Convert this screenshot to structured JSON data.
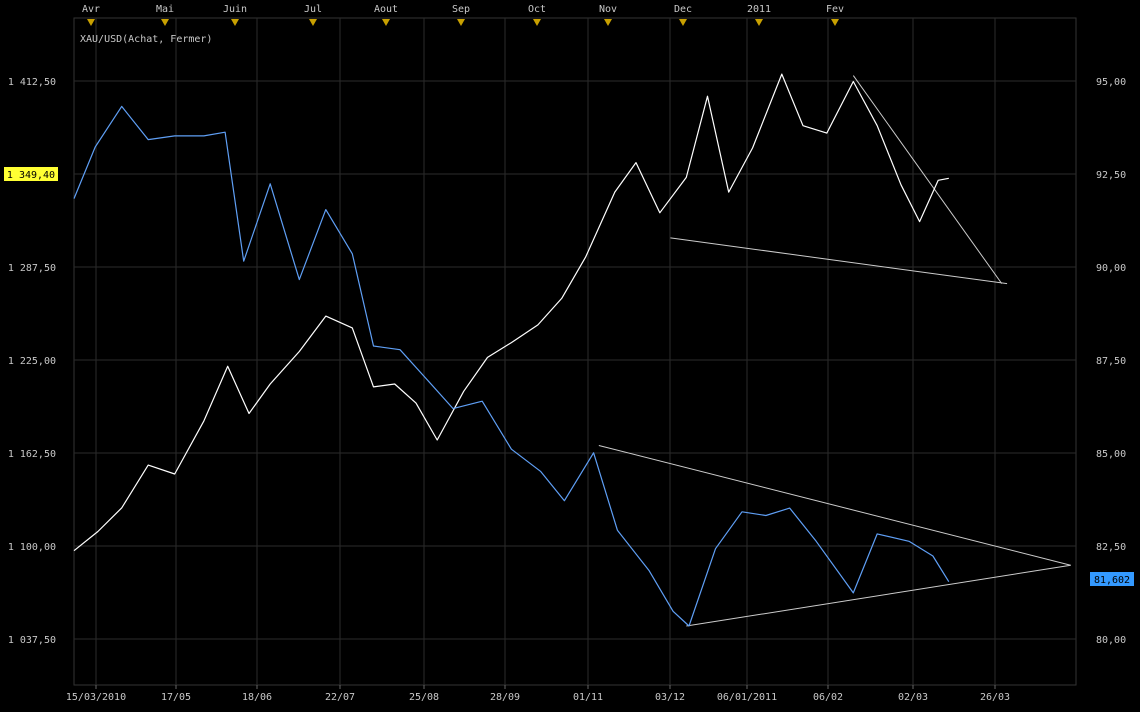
{
  "chart_data": {
    "type": "line",
    "title": "XAU/USD(Achat, Fermer)",
    "top_axis": {
      "month_labels": [
        "Avr",
        "Mai",
        "Juin",
        "Jul",
        "Aout",
        "Sep",
        "Oct",
        "Nov",
        "Dec",
        "2011",
        "Fev"
      ]
    },
    "x_axis": {
      "tick_labels": [
        "15/03/2010",
        "17/05",
        "18/06",
        "22/07",
        "25/08",
        "28/09",
        "01/11",
        "03/12",
        "06/01/2011",
        "06/02",
        "02/03",
        "26/03"
      ]
    },
    "y_axis_left": {
      "tick_labels": [
        "1 412,50",
        "1 349,40",
        "1 287,50",
        "1 225,00",
        "1 162,50",
        "1 100,00",
        "1 037,50"
      ],
      "ticks": [
        1412.5,
        1287.5,
        1225.0,
        1162.5,
        1100.0,
        1037.5
      ],
      "range": [
        1006,
        1458
      ]
    },
    "y_axis_right": {
      "tick_labels": [
        "95,00",
        "92,50",
        "90,00",
        "87,50",
        "85,00",
        "82,50",
        "81,602",
        "80,00"
      ],
      "ticks": [
        95.0,
        92.5,
        90.0,
        87.5,
        85.0,
        82.5,
        80.0
      ],
      "range": [
        78.8,
        96.9
      ]
    },
    "current_values": {
      "left_label": "1 349,40",
      "right_label": "81,602",
      "left_color": "#ffff33",
      "right_color": "#3399ff"
    },
    "x_range": [
      "2010-03-15",
      "2011-03-28"
    ],
    "series": [
      {
        "axis": "left",
        "color": "#ffffff",
        "points": [
          [
            "2010-03-15",
            1097
          ],
          [
            "2010-03-24",
            1110
          ],
          [
            "2010-04-02",
            1126
          ],
          [
            "2010-04-12",
            1155
          ],
          [
            "2010-04-22",
            1149
          ],
          [
            "2010-05-03",
            1185
          ],
          [
            "2010-05-12",
            1222
          ],
          [
            "2010-05-20",
            1190
          ],
          [
            "2010-05-28",
            1210
          ],
          [
            "2010-06-08",
            1232
          ],
          [
            "2010-06-18",
            1256
          ],
          [
            "2010-06-28",
            1248
          ],
          [
            "2010-07-06",
            1208
          ],
          [
            "2010-07-14",
            1210
          ],
          [
            "2010-07-22",
            1197
          ],
          [
            "2010-07-30",
            1172
          ],
          [
            "2010-08-09",
            1205
          ],
          [
            "2010-08-18",
            1228
          ],
          [
            "2010-08-27",
            1238
          ],
          [
            "2010-09-06",
            1250
          ],
          [
            "2010-09-15",
            1268
          ],
          [
            "2010-09-24",
            1296
          ],
          [
            "2010-10-05",
            1340
          ],
          [
            "2010-10-13",
            1360
          ],
          [
            "2010-10-22",
            1326
          ],
          [
            "2010-11-01",
            1350
          ],
          [
            "2010-11-09",
            1405
          ],
          [
            "2010-11-17",
            1340
          ],
          [
            "2010-11-26",
            1370
          ],
          [
            "2010-12-07",
            1420
          ],
          [
            "2010-12-15",
            1385
          ],
          [
            "2010-12-24",
            1380
          ],
          [
            "2011-01-03",
            1415
          ],
          [
            "2011-01-12",
            1385
          ],
          [
            "2011-01-21",
            1345
          ],
          [
            "2011-01-28",
            1320
          ],
          [
            "2011-02-04",
            1348
          ],
          [
            "2011-02-08",
            1349.4
          ]
        ]
      },
      {
        "axis": "right",
        "color": "#5f9ff5",
        "points": [
          [
            "2010-03-15",
            92.0
          ],
          [
            "2010-03-23",
            93.4
          ],
          [
            "2010-04-02",
            94.5
          ],
          [
            "2010-04-12",
            93.6
          ],
          [
            "2010-04-22",
            93.7
          ],
          [
            "2010-05-03",
            93.7
          ],
          [
            "2010-05-11",
            93.8
          ],
          [
            "2010-05-18",
            90.3
          ],
          [
            "2010-05-28",
            92.4
          ],
          [
            "2010-06-08",
            89.8
          ],
          [
            "2010-06-18",
            91.7
          ],
          [
            "2010-06-28",
            90.5
          ],
          [
            "2010-07-06",
            88.0
          ],
          [
            "2010-07-16",
            87.9
          ],
          [
            "2010-07-26",
            87.1
          ],
          [
            "2010-08-05",
            86.3
          ],
          [
            "2010-08-16",
            86.5
          ],
          [
            "2010-08-27",
            85.2
          ],
          [
            "2010-09-07",
            84.6
          ],
          [
            "2010-09-16",
            83.8
          ],
          [
            "2010-09-27",
            85.1
          ],
          [
            "2010-10-06",
            83.0
          ],
          [
            "2010-10-18",
            81.9
          ],
          [
            "2010-10-27",
            80.8
          ],
          [
            "2010-11-02",
            80.4
          ],
          [
            "2010-11-12",
            82.5
          ],
          [
            "2010-11-22",
            83.5
          ],
          [
            "2010-12-01",
            83.4
          ],
          [
            "2010-12-10",
            83.6
          ],
          [
            "2010-12-20",
            82.7
          ],
          [
            "2011-01-03",
            81.3
          ],
          [
            "2011-01-12",
            82.9
          ],
          [
            "2011-01-24",
            82.7
          ],
          [
            "2011-02-02",
            82.3
          ],
          [
            "2011-02-08",
            81.602
          ]
        ]
      }
    ],
    "trendlines": [
      {
        "axis": "left",
        "points": [
          [
            "2011-01-03",
            1419
          ],
          [
            "2011-02-28",
            1278
          ]
        ],
        "color": "#cccccc"
      },
      {
        "axis": "left",
        "points": [
          [
            "2010-10-26",
            1309
          ],
          [
            "2011-03-02",
            1278
          ]
        ],
        "color": "#cccccc"
      },
      {
        "axis": "right",
        "points": [
          [
            "2010-09-29",
            85.3
          ],
          [
            "2011-03-26",
            82.05
          ]
        ],
        "color": "#cccccc"
      },
      {
        "axis": "right",
        "points": [
          [
            "2010-11-01",
            80.4
          ],
          [
            "2011-03-26",
            82.05
          ]
        ],
        "color": "#cccccc"
      }
    ],
    "grid": true
  }
}
